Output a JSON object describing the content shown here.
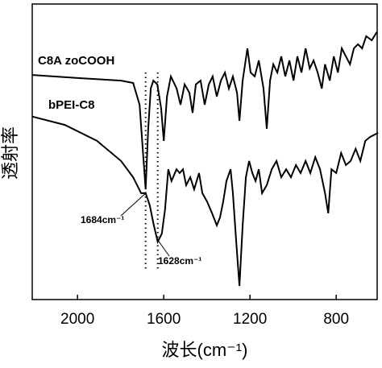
{
  "chart_data": {
    "type": "line",
    "x_label": "波长(cm⁻¹)",
    "y_label": "透射率",
    "xlim": [
      2210,
      610
    ],
    "xticks": [
      2000,
      1600,
      1200,
      800
    ],
    "ylim": [
      0,
      100
    ],
    "series": [
      {
        "name": "C8A zoCOOH",
        "color": "#000000",
        "x": [
          2209,
          1985,
          1798,
          1742,
          1712,
          1684,
          1672,
          1660,
          1648,
          1630,
          1612,
          1600,
          1585,
          1567,
          1540,
          1522,
          1503,
          1481,
          1466,
          1451,
          1429,
          1410,
          1391,
          1373,
          1354,
          1335,
          1316,
          1298,
          1279,
          1260,
          1249,
          1234,
          1212,
          1197,
          1178,
          1159,
          1137,
          1122,
          1107,
          1092,
          1073,
          1055,
          1036,
          1017,
          998,
          980,
          961,
          942,
          923,
          905,
          886,
          867,
          852,
          830,
          811,
          792,
          774,
          755,
          736,
          718,
          699,
          680,
          661,
          635,
          612
        ],
        "values": [
          76.0,
          74.9,
          74.1,
          73.3,
          65.9,
          37.3,
          57.8,
          71.4,
          74.1,
          72.8,
          64.6,
          53.7,
          68.7,
          75.5,
          71.4,
          65.9,
          72.8,
          70.0,
          63.2,
          72.8,
          74.1,
          65.9,
          72.8,
          75.5,
          68.7,
          74.1,
          76.8,
          71.4,
          75.5,
          70.0,
          60.5,
          74.1,
          85.0,
          76.8,
          75.5,
          80.9,
          71.4,
          57.8,
          74.1,
          79.6,
          76.8,
          82.3,
          75.5,
          80.9,
          74.1,
          82.3,
          76.8,
          85.0,
          78.2,
          80.9,
          76.8,
          71.4,
          79.6,
          74.1,
          82.3,
          76.8,
          85.0,
          82.3,
          79.6,
          85.0,
          86.4,
          85.0,
          89.1,
          87.7,
          90.5
        ]
      },
      {
        "name": "bPEI-C8",
        "color": "#000000",
        "x": [
          2209,
          2059,
          1910,
          1798,
          1742,
          1705,
          1684,
          1665,
          1646,
          1628,
          1609,
          1594,
          1579,
          1564,
          1541,
          1526,
          1511,
          1496,
          1477,
          1459,
          1436,
          1421,
          1399,
          1376,
          1354,
          1339,
          1324,
          1309,
          1290,
          1279,
          1264,
          1249,
          1234,
          1219,
          1204,
          1189,
          1174,
          1159,
          1144,
          1122,
          1099,
          1077,
          1055,
          1032,
          1010,
          987,
          965,
          942,
          920,
          897,
          875,
          852,
          837,
          822,
          800,
          777,
          755,
          733,
          710,
          688,
          665,
          643,
          606
        ],
        "values": [
          61.9,
          59.1,
          53.7,
          46.9,
          41.4,
          36.0,
          36.0,
          31.9,
          25.1,
          19.6,
          22.3,
          30.5,
          44.1,
          40.1,
          44.1,
          42.8,
          44.1,
          38.7,
          41.4,
          37.3,
          42.8,
          36.0,
          33.2,
          29.2,
          25.1,
          27.8,
          33.2,
          40.1,
          44.1,
          36.0,
          19.6,
          4.6,
          25.1,
          41.4,
          46.9,
          42.8,
          40.1,
          44.1,
          36.0,
          38.7,
          44.1,
          46.9,
          41.4,
          44.1,
          41.4,
          45.5,
          42.8,
          46.9,
          42.8,
          48.2,
          44.1,
          36.0,
          29.2,
          44.1,
          42.8,
          49.6,
          45.5,
          46.9,
          51.0,
          46.9,
          53.7,
          55.0,
          56.4
        ]
      }
    ],
    "annotations": [
      {
        "text": "1684cm⁻¹",
        "x": 1684
      },
      {
        "text": "1628cm⁻¹",
        "x": 1628
      }
    ]
  }
}
